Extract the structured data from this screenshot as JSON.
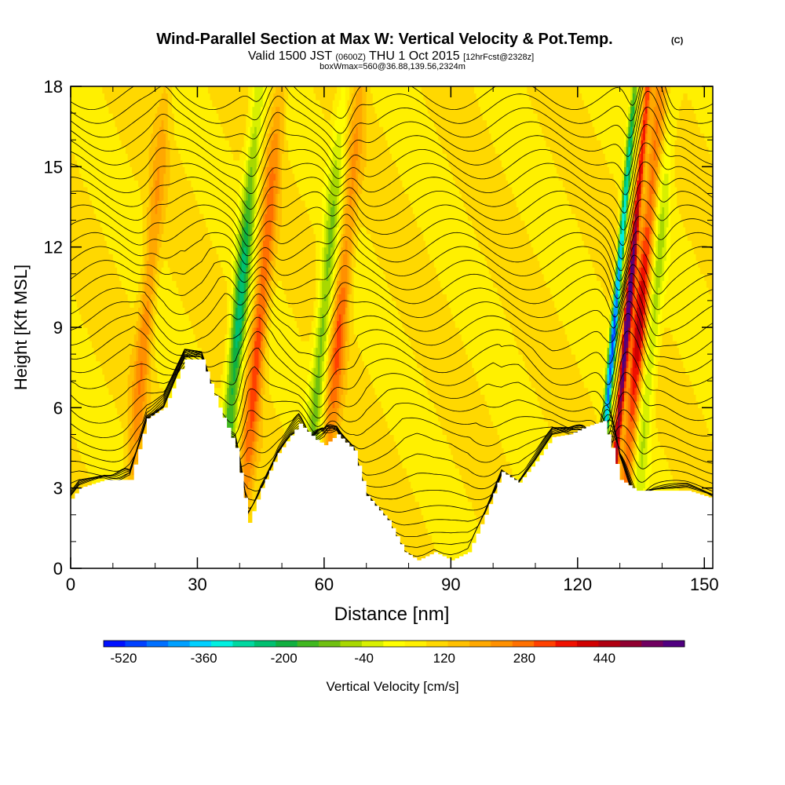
{
  "chart_data": {
    "type": "heatmap",
    "title": "Wind-Parallel Section at Max W: Vertical Velocity & Pot.Temp.",
    "title_mark": "(C)",
    "subtitle": {
      "part1": "Valid 1500 JST",
      "part2": "(0600Z)",
      "part3": "THU 1 Oct 2015",
      "part4": "[12hrFcst@2328z]"
    },
    "subtitle2": "boxWmax=560@36.88,139.56,2324m",
    "xlabel": "Distance [nm]",
    "ylabel": "Height [Kft MSL]",
    "xlim": [
      0,
      152
    ],
    "ylim": [
      0,
      18
    ],
    "x_ticks": [
      "0",
      "30",
      "60",
      "90",
      "120",
      "150"
    ],
    "x_tick_values": [
      0,
      30,
      60,
      90,
      120,
      150
    ],
    "y_ticks": [
      "0",
      "3",
      "6",
      "9",
      "12",
      "15",
      "18"
    ],
    "y_tick_values": [
      0,
      3,
      6,
      9,
      12,
      15,
      18
    ],
    "colorbar": {
      "label": "Vertical Velocity [cm/s]",
      "tick_labels": [
        "-520",
        "-360",
        "-200",
        "-40",
        "120",
        "280",
        "440"
      ],
      "tick_values": [
        -520,
        -360,
        -200,
        -40,
        120,
        280,
        440
      ],
      "min": -560,
      "max": 600,
      "step": 40,
      "colors": [
        "#0010ff",
        "#0040ff",
        "#0070ff",
        "#00a0ff",
        "#00d0ff",
        "#00f0e0",
        "#00d8a0",
        "#00c070",
        "#10b040",
        "#40b820",
        "#70c010",
        "#a8d800",
        "#d8f000",
        "#ffff00",
        "#fff000",
        "#ffd800",
        "#ffc000",
        "#ffa800",
        "#ff9000",
        "#ff7000",
        "#ff4000",
        "#f01000",
        "#d00000",
        "#b00010",
        "#900030",
        "#700060",
        "#500080"
      ]
    },
    "updraft_cores": [
      {
        "x": 16,
        "w": 160
      },
      {
        "x": 43,
        "w": 240
      },
      {
        "x": 62,
        "w": 200
      },
      {
        "x": 130,
        "w": 540
      },
      {
        "x": 133,
        "w": 320
      }
    ],
    "downdraft_cores": [
      {
        "x": 38,
        "w": -320
      },
      {
        "x": 58,
        "w": -200
      },
      {
        "x": 127,
        "w": -560
      },
      {
        "x": 136,
        "w": -160
      }
    ],
    "terrain": {
      "x": [
        0,
        2,
        8,
        14,
        18,
        22,
        27,
        31,
        35,
        39,
        42,
        45,
        49,
        54,
        58,
        60,
        63,
        67,
        70,
        75,
        79,
        82,
        86,
        90,
        94,
        98,
        102,
        106,
        110,
        114,
        118,
        122,
        126,
        128,
        130,
        134,
        140,
        146,
        152
      ],
      "y": [
        2.6,
        3.0,
        3.3,
        3.3,
        5.6,
        6.0,
        7.8,
        7.8,
        6.0,
        4.5,
        1.7,
        3.0,
        4.3,
        5.4,
        4.8,
        4.6,
        5.0,
        4.4,
        2.7,
        1.8,
        0.6,
        0.3,
        0.6,
        0.3,
        0.6,
        2.0,
        3.6,
        3.2,
        4.0,
        4.9,
        5.0,
        5.3,
        5.5,
        4.5,
        3.3,
        2.9,
        2.9,
        2.9,
        2.6
      ]
    },
    "theta_contours": {
      "count": 34,
      "interval_k": 1
    },
    "grid": false,
    "legend": "bottom colorbar"
  }
}
